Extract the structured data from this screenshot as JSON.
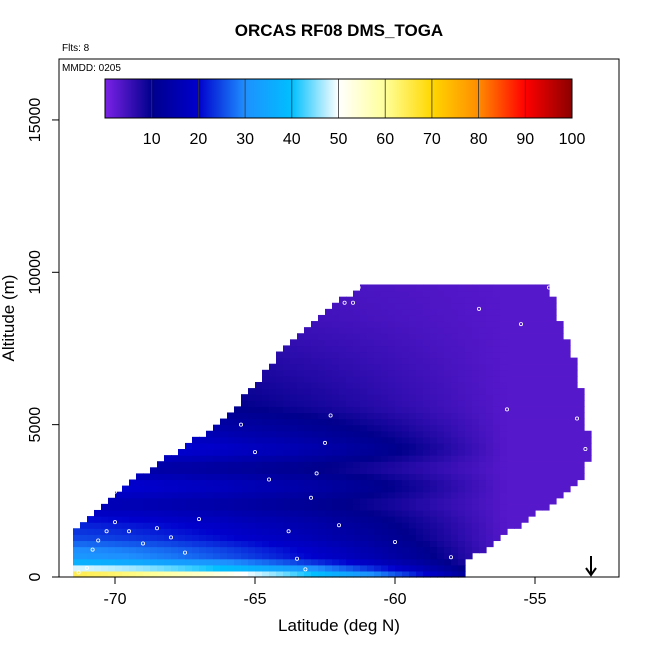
{
  "chart_data": {
    "type": "heatmap",
    "title": "ORCAS RF08 DMS_TOGA",
    "notes": {
      "flights": "Flts: 8",
      "date": "MMDD: 0205"
    },
    "xlabel": "Latitude (deg N)",
    "ylabel": "Altitude (m)",
    "xlim": [
      -72.0,
      -52.0
    ],
    "ylim": [
      0,
      17000
    ],
    "x_ticks": [
      -70,
      -65,
      -60,
      -55
    ],
    "x_tick_labels": [
      "-70",
      "-65",
      "-60",
      "-55"
    ],
    "y_ticks": [
      0,
      5000,
      10000,
      15000
    ],
    "y_tick_labels": [
      "0",
      "5000",
      "10000",
      "15000"
    ],
    "colorbar": {
      "min": 0,
      "max": 100,
      "ticks": [
        10,
        20,
        30,
        40,
        50,
        60,
        70,
        80,
        90,
        100
      ],
      "tick_labels": [
        "10",
        "20",
        "30",
        "40",
        "50",
        "60",
        "70",
        "80",
        "90",
        "100"
      ],
      "colors": [
        "#7b22e6",
        "#00008c",
        "#0000cd",
        "#1e90ff",
        "#00bfff",
        "#ffffff",
        "#ffff99",
        "#ffd700",
        "#ff8c00",
        "#ff0000",
        "#8b0000"
      ]
    },
    "field": {
      "envelope": [
        [
          -71.5,
          0
        ],
        [
          -71.5,
          1500
        ],
        [
          -70.0,
          2800
        ],
        [
          -66.0,
          5200
        ],
        [
          -63.5,
          8000
        ],
        [
          -61.0,
          9700
        ],
        [
          -54.5,
          9700
        ],
        [
          -54.0,
          8000
        ],
        [
          -53.5,
          7000
        ],
        [
          -53.0,
          4000
        ],
        [
          -53.5,
          3000
        ],
        [
          -57.5,
          500
        ],
        [
          -57.5,
          0
        ]
      ],
      "layers": [
        {
          "alt": 0,
          "value": 75
        },
        {
          "alt": 150,
          "value": 60
        },
        {
          "alt": 350,
          "value": 45
        },
        {
          "alt": 600,
          "value": 32
        },
        {
          "alt": 900,
          "value": 30
        },
        {
          "alt": 1300,
          "value": 25
        },
        {
          "alt": 1800,
          "value": 22
        },
        {
          "alt": 2400,
          "value": 16
        },
        {
          "alt": 3000,
          "value": 22
        },
        {
          "alt": 3600,
          "value": 14
        },
        {
          "alt": 4200,
          "value": 24
        },
        {
          "alt": 4800,
          "value": 18
        },
        {
          "alt": 5600,
          "value": 12
        },
        {
          "alt": 6500,
          "value": 10
        },
        {
          "alt": 7500,
          "value": 8
        },
        {
          "alt": 8500,
          "value": 6
        },
        {
          "alt": 9700,
          "value": 5
        }
      ],
      "north_value": 3
    },
    "samples": [
      [
        -71.3,
        150
      ],
      [
        -71.0,
        300
      ],
      [
        -70.8,
        900
      ],
      [
        -70.6,
        1200
      ],
      [
        -70.3,
        1500
      ],
      [
        -70.0,
        1800
      ],
      [
        -70.0,
        2800
      ],
      [
        -69.5,
        1500
      ],
      [
        -69.0,
        1100
      ],
      [
        -68.5,
        1600
      ],
      [
        -68.0,
        1300
      ],
      [
        -67.5,
        800
      ],
      [
        -67.0,
        1900
      ],
      [
        -65.5,
        5000
      ],
      [
        -65.0,
        4100
      ],
      [
        -64.5,
        3200
      ],
      [
        -63.8,
        1500
      ],
      [
        -63.5,
        600
      ],
      [
        -63.2,
        250
      ],
      [
        -63.0,
        2600
      ],
      [
        -62.8,
        3400
      ],
      [
        -62.5,
        4400
      ],
      [
        -62.3,
        5300
      ],
      [
        -62.0,
        1700
      ],
      [
        -61.8,
        9000
      ],
      [
        -61.5,
        9000
      ],
      [
        -61.3,
        9500
      ],
      [
        -60.0,
        1150
      ],
      [
        -58.0,
        650
      ],
      [
        -57.0,
        8800
      ],
      [
        -56.0,
        5500
      ],
      [
        -55.5,
        8300
      ],
      [
        -54.5,
        9500
      ],
      [
        -53.5,
        5200
      ],
      [
        -53.2,
        4200
      ]
    ],
    "marker": {
      "lat": -53.0,
      "label": "down-arrow"
    }
  }
}
